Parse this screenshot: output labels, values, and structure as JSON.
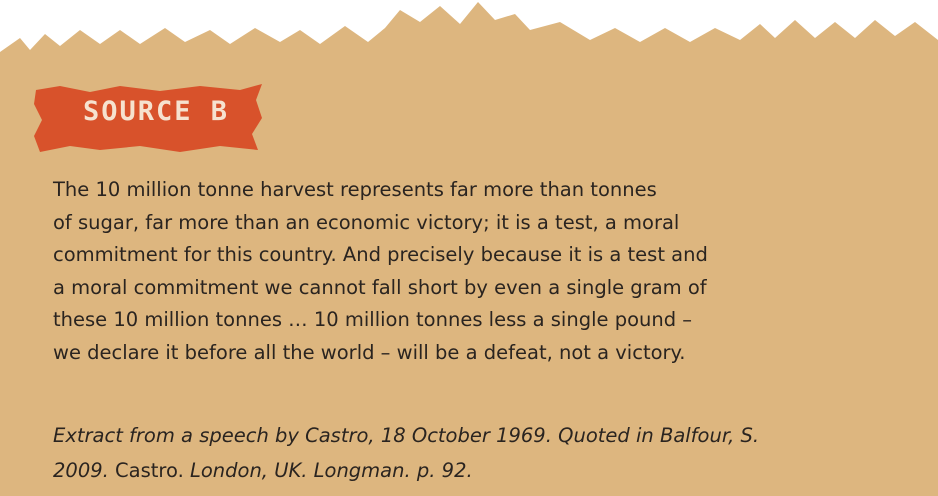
{
  "source_label": "SOURCE B",
  "quote": {
    "lines": [
      "The 10 million tonne harvest represents far more than tonnes",
      "of sugar, far more than an economic victory; it is a test, a moral",
      "commitment for this country. And precisely because it is a test and",
      "a moral commitment we cannot fall short by even a single gram of",
      "these 10 million tonnes … 10 million tonnes less a single pound –",
      "we declare it before all the world – will be a defeat, not a victory."
    ]
  },
  "citation": {
    "lines": [
      [
        {
          "text": "Extract from a speech by Castro, 18 October 1969. Quoted in Balfour, S.",
          "italic": true
        }
      ],
      [
        {
          "text": "2009.",
          "italic": true
        },
        {
          "text": " Castro.",
          "italic": false
        },
        {
          "text": " London, UK. Longman. p. 92.",
          "italic": true
        }
      ]
    ]
  }
}
